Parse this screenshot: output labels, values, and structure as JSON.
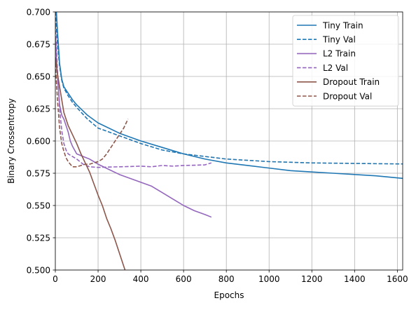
{
  "chart_data": {
    "type": "line",
    "title": "",
    "xlabel": "Epochs",
    "ylabel": "Binary Crossentropy",
    "xlim": [
      0,
      1625
    ],
    "ylim": [
      0.5,
      0.7
    ],
    "xticks": [
      0,
      200,
      400,
      600,
      800,
      1000,
      1200,
      1400,
      1600
    ],
    "yticks": [
      0.5,
      0.525,
      0.55,
      0.575,
      0.6,
      0.625,
      0.65,
      0.675,
      0.7
    ],
    "xtick_labels": [
      "0",
      "200",
      "400",
      "600",
      "800",
      "1000",
      "1200",
      "1400",
      "1600"
    ],
    "ytick_labels": [
      "0.500",
      "0.525",
      "0.550",
      "0.575",
      "0.600",
      "0.625",
      "0.650",
      "0.675",
      "0.700"
    ],
    "grid": true,
    "legend_position": "top-right",
    "series": [
      {
        "name": "Tiny Train",
        "color": "#1f77b4",
        "dash": "solid",
        "points": [
          [
            0,
            0.715
          ],
          [
            10,
            0.685
          ],
          [
            20,
            0.66
          ],
          [
            30,
            0.648
          ],
          [
            40,
            0.642
          ],
          [
            60,
            0.637
          ],
          [
            80,
            0.632
          ],
          [
            100,
            0.628
          ],
          [
            150,
            0.62
          ],
          [
            200,
            0.614
          ],
          [
            300,
            0.606
          ],
          [
            400,
            0.6
          ],
          [
            500,
            0.595
          ],
          [
            600,
            0.59
          ],
          [
            700,
            0.586
          ],
          [
            800,
            0.583
          ],
          [
            900,
            0.581
          ],
          [
            1000,
            0.579
          ],
          [
            1100,
            0.577
          ],
          [
            1200,
            0.576
          ],
          [
            1300,
            0.575
          ],
          [
            1400,
            0.574
          ],
          [
            1500,
            0.573
          ],
          [
            1625,
            0.571
          ]
        ]
      },
      {
        "name": "Tiny Val",
        "color": "#1f77b4",
        "dash": "dashed",
        "points": [
          [
            0,
            0.7
          ],
          [
            10,
            0.675
          ],
          [
            20,
            0.658
          ],
          [
            30,
            0.647
          ],
          [
            40,
            0.641
          ],
          [
            60,
            0.635
          ],
          [
            80,
            0.63
          ],
          [
            100,
            0.626
          ],
          [
            150,
            0.617
          ],
          [
            200,
            0.61
          ],
          [
            300,
            0.604
          ],
          [
            400,
            0.598
          ],
          [
            500,
            0.593
          ],
          [
            600,
            0.59
          ],
          [
            700,
            0.588
          ],
          [
            800,
            0.586
          ],
          [
            900,
            0.585
          ],
          [
            1000,
            0.584
          ],
          [
            1100,
            0.5835
          ],
          [
            1200,
            0.583
          ],
          [
            1300,
            0.5828
          ],
          [
            1400,
            0.5826
          ],
          [
            1500,
            0.5824
          ],
          [
            1625,
            0.5822
          ]
        ]
      },
      {
        "name": "L2 Train",
        "color": "#9467bd",
        "dash": "solid",
        "points": [
          [
            0,
            0.68
          ],
          [
            10,
            0.65
          ],
          [
            20,
            0.628
          ],
          [
            30,
            0.62
          ],
          [
            40,
            0.617
          ],
          [
            50,
            0.612
          ],
          [
            60,
            0.607
          ],
          [
            70,
            0.6
          ],
          [
            80,
            0.596
          ],
          [
            90,
            0.593
          ],
          [
            100,
            0.59
          ],
          [
            130,
            0.588
          ],
          [
            160,
            0.586
          ],
          [
            200,
            0.582
          ],
          [
            250,
            0.578
          ],
          [
            300,
            0.574
          ],
          [
            350,
            0.571
          ],
          [
            400,
            0.568
          ],
          [
            450,
            0.565
          ],
          [
            500,
            0.56
          ],
          [
            550,
            0.555
          ],
          [
            600,
            0.55
          ],
          [
            650,
            0.546
          ],
          [
            700,
            0.543
          ],
          [
            730,
            0.541
          ]
        ]
      },
      {
        "name": "L2 Val",
        "color": "#9467bd",
        "dash": "dashed",
        "points": [
          [
            0,
            0.69
          ],
          [
            10,
            0.655
          ],
          [
            20,
            0.625
          ],
          [
            30,
            0.608
          ],
          [
            40,
            0.598
          ],
          [
            50,
            0.593
          ],
          [
            60,
            0.59
          ],
          [
            80,
            0.588
          ],
          [
            100,
            0.586
          ],
          [
            130,
            0.582
          ],
          [
            160,
            0.58
          ],
          [
            200,
            0.5795
          ],
          [
            250,
            0.5798
          ],
          [
            300,
            0.58
          ],
          [
            350,
            0.5802
          ],
          [
            400,
            0.5805
          ],
          [
            450,
            0.58
          ],
          [
            500,
            0.581
          ],
          [
            550,
            0.5805
          ],
          [
            600,
            0.581
          ],
          [
            650,
            0.5812
          ],
          [
            700,
            0.5815
          ],
          [
            730,
            0.583
          ]
        ]
      },
      {
        "name": "Dropout Train",
        "color": "#8c564b",
        "dash": "solid",
        "points": [
          [
            0,
            0.665
          ],
          [
            10,
            0.652
          ],
          [
            20,
            0.642
          ],
          [
            30,
            0.632
          ],
          [
            40,
            0.622
          ],
          [
            50,
            0.617
          ],
          [
            60,
            0.612
          ],
          [
            80,
            0.605
          ],
          [
            100,
            0.598
          ],
          [
            120,
            0.59
          ],
          [
            140,
            0.583
          ],
          [
            160,
            0.576
          ],
          [
            180,
            0.567
          ],
          [
            200,
            0.558
          ],
          [
            220,
            0.55
          ],
          [
            240,
            0.54
          ],
          [
            260,
            0.532
          ],
          [
            280,
            0.523
          ],
          [
            300,
            0.513
          ],
          [
            320,
            0.503
          ],
          [
            330,
            0.498
          ]
        ]
      },
      {
        "name": "Dropout Val",
        "color": "#8c564b",
        "dash": "dashed",
        "points": [
          [
            0,
            0.66
          ],
          [
            10,
            0.632
          ],
          [
            20,
            0.61
          ],
          [
            30,
            0.598
          ],
          [
            40,
            0.592
          ],
          [
            50,
            0.587
          ],
          [
            60,
            0.584
          ],
          [
            80,
            0.58
          ],
          [
            100,
            0.58
          ],
          [
            120,
            0.581
          ],
          [
            140,
            0.582
          ],
          [
            160,
            0.582
          ],
          [
            180,
            0.583
          ],
          [
            200,
            0.584
          ],
          [
            220,
            0.586
          ],
          [
            240,
            0.59
          ],
          [
            260,
            0.595
          ],
          [
            280,
            0.6
          ],
          [
            300,
            0.605
          ],
          [
            320,
            0.61
          ],
          [
            340,
            0.617
          ]
        ]
      }
    ]
  }
}
